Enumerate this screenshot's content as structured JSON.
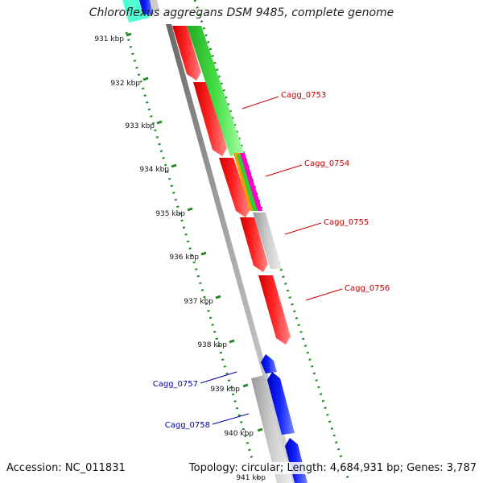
{
  "map": {
    "title": "Chloroflexus aggregans DSM 9485, complete genome",
    "accession": "Accession: NC_011831",
    "summary": "Topology: circular; Length: 4,684,931 bp; Genes: 3,787",
    "kbp_labels": [
      "931 kbp",
      "932 kbp",
      "933 kbp",
      "934 kbp",
      "935 kbp",
      "936 kbp",
      "937 kbp",
      "938 kbp",
      "939 kbp",
      "940 kbp",
      "941 kbp"
    ],
    "gene_labels": [
      {
        "name": "Cagg_0753",
        "color": "#cc0000"
      },
      {
        "name": "Cagg_0754",
        "color": "#cc0000"
      },
      {
        "name": "Cagg_0755",
        "color": "#cc0000"
      },
      {
        "name": "Cagg_0756",
        "color": "#cc0000"
      },
      {
        "name": "Cagg_0757",
        "color": "#0000aa"
      },
      {
        "name": "Cagg_0758",
        "color": "#0000aa"
      }
    ]
  },
  "colors": {
    "forward_cds": "#ff0000",
    "reverse_cds": "#0000ff",
    "cog_green": "#33cc33",
    "teal": "#33ffcc",
    "gray_feature": "#bbbbbb",
    "backbone": "#888888",
    "tick_green": "#228822",
    "magenta": "#ff00cc",
    "orange": "#ff9900"
  }
}
